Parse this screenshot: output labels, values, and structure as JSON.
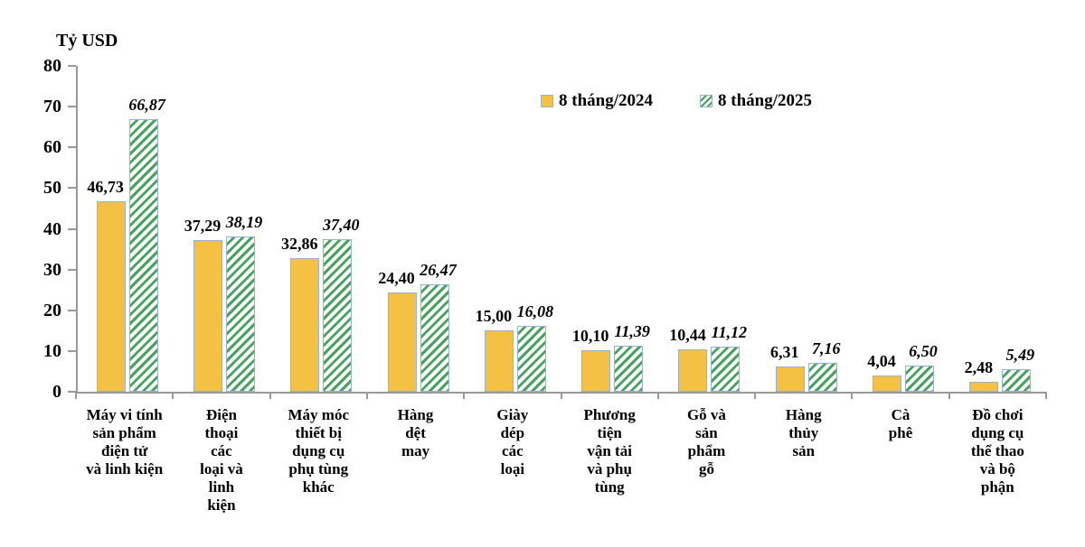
{
  "axis_title": "Tỷ USD",
  "legend": {
    "items": [
      {
        "label": "8 tháng/2024",
        "style": "solid"
      },
      {
        "label": "8 tháng/2025",
        "style": "hatched"
      }
    ]
  },
  "colors": {
    "series_2024_fill": "#F4C145",
    "series_2025_hatch_green": "#47A35F",
    "bar_border_blue": "#95B3D7",
    "axis_line_grey": "#999999",
    "text": "#000000",
    "background": "#FFFFFF"
  },
  "chart_data": {
    "type": "bar",
    "title": "",
    "xlabel": "",
    "ylabel": "Tỷ USD",
    "ylim": [
      0,
      80
    ],
    "yticks": [
      0,
      10,
      20,
      30,
      40,
      50,
      60,
      70,
      80
    ],
    "grid": false,
    "legend_position": "top-center-inside",
    "categories": [
      "Máy vi tính sản phẩm điện tử và linh kiện",
      "Điện thoại các loại và linh kiện",
      "Máy móc thiết bị dụng cụ phụ tùng khác",
      "Hàng dệt may",
      "Giày dép các loại",
      "Phương tiện vận tải và phụ tùng",
      "Gỗ và sản phẩm gỗ",
      "Hàng thủy sản",
      "Cà phê",
      "Đồ chơi dụng cụ thể thao và bộ phận"
    ],
    "category_label_lines": [
      [
        "Máy vi tính",
        "sản phẩm",
        "điện tử",
        "và linh kiện"
      ],
      [
        "Điện",
        "thoại",
        "các",
        "loại và",
        "linh",
        "kiện"
      ],
      [
        "Máy móc",
        "thiết bị",
        "dụng cụ",
        "phụ tùng",
        "khác"
      ],
      [
        "Hàng",
        "dệt",
        "may"
      ],
      [
        "Giày",
        "dép",
        "các",
        "loại"
      ],
      [
        "Phương",
        "tiện",
        "vận tải",
        "và phụ",
        "tùng"
      ],
      [
        "Gỗ và",
        "sản",
        "phẩm",
        "gỗ"
      ],
      [
        "Hàng",
        "thủy",
        "sản"
      ],
      [
        "Cà",
        "phê"
      ],
      [
        "Đồ chơi",
        "dụng cụ",
        "thể thao",
        "và bộ",
        "phận"
      ]
    ],
    "series": [
      {
        "name": "8 tháng/2024",
        "values": [
          46.73,
          37.29,
          32.86,
          24.4,
          15.0,
          10.1,
          10.44,
          6.31,
          4.04,
          2.48
        ],
        "labels": [
          "46,73",
          "37,29",
          "32,86",
          "24,40",
          "15,00",
          "10,10",
          "10,44",
          "6,31",
          "4,04",
          "2,48"
        ]
      },
      {
        "name": "8 tháng/2025",
        "values": [
          66.87,
          38.19,
          37.4,
          26.47,
          16.08,
          11.39,
          11.12,
          7.16,
          6.5,
          5.49
        ],
        "labels": [
          "66,87",
          "38,19",
          "37,40",
          "26,47",
          "16,08",
          "11,39",
          "11,12",
          "7,16",
          "6,50",
          "5,49"
        ]
      }
    ]
  }
}
